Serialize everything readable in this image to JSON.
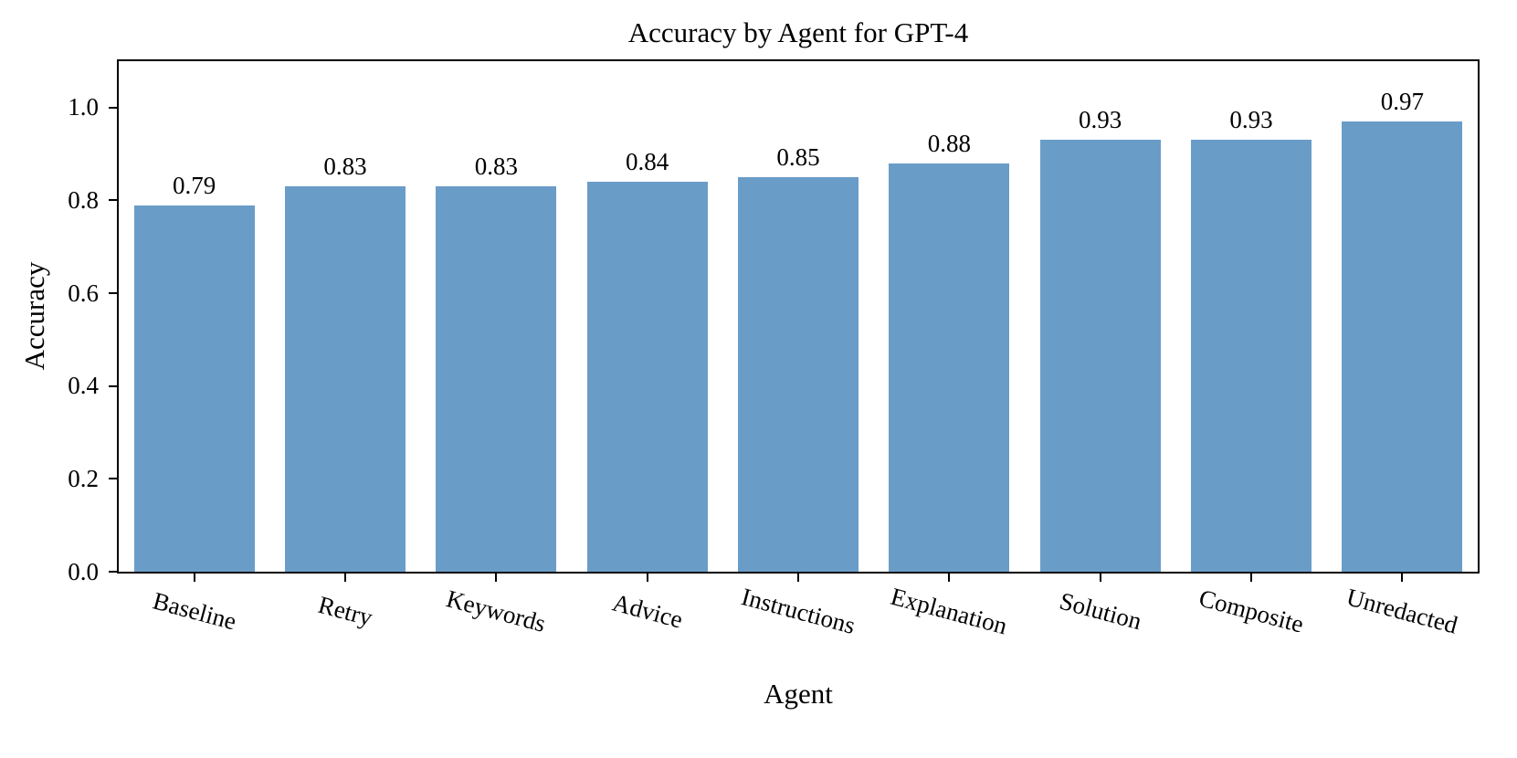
{
  "figure": {
    "background": "#ffffff",
    "text_color": "#000000"
  },
  "chart_data": {
    "type": "bar",
    "title": "Accuracy by Agent for GPT-4",
    "xlabel": "Agent",
    "ylabel": "Accuracy",
    "categories": [
      "Baseline",
      "Retry",
      "Keywords",
      "Advice",
      "Instructions",
      "Explanation",
      "Solution",
      "Composite",
      "Unredacted"
    ],
    "values": [
      0.79,
      0.83,
      0.83,
      0.84,
      0.85,
      0.88,
      0.93,
      0.93,
      0.97
    ],
    "bar_value_labels": [
      "0.79",
      "0.83",
      "0.83",
      "0.84",
      "0.85",
      "0.88",
      "0.93",
      "0.93",
      "0.97"
    ],
    "ylim": [
      0,
      1.1
    ],
    "yticks": [
      0,
      0.2,
      0.4,
      0.6,
      0.8,
      1.0
    ],
    "ytick_labels": [
      "0.0",
      "0.2",
      "0.4",
      "0.6",
      "0.8",
      "1.0"
    ],
    "bar_color": "#6A9CC8",
    "bar_width_fraction": 0.8,
    "xtick_rotation_deg": 15,
    "grid": false,
    "legend": "none"
  }
}
